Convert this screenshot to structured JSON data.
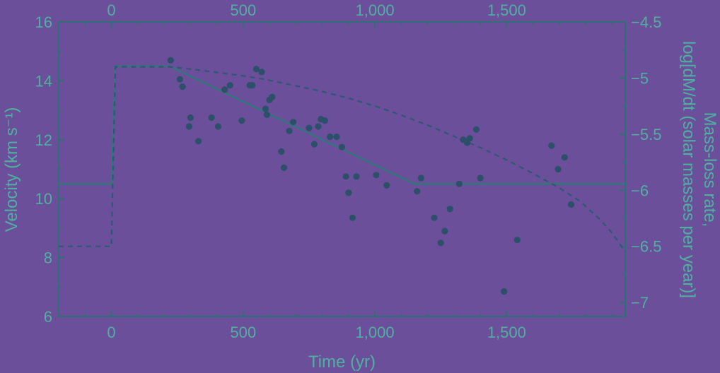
{
  "chart_data": {
    "type": "scatter",
    "xlabel": "Time (yr)",
    "ylabel_left": "Velocity (km s⁻¹)",
    "ylabel_right_line1": "Mass-loss rate,",
    "ylabel_right_line2": "log[dM/dt (solar masses per year)]",
    "xlim": [
      -200,
      1950
    ],
    "ylim_left": [
      6,
      16
    ],
    "ylim_right": [
      -7.125,
      -4.5
    ],
    "bottom_ticks": [
      {
        "v": 0,
        "label": "0"
      },
      {
        "v": 500,
        "label": "500"
      },
      {
        "v": 1000,
        "label": "1,000"
      },
      {
        "v": 1500,
        "label": "1,500"
      }
    ],
    "top_ticks": [
      {
        "v": 0,
        "label": "0"
      },
      {
        "v": 500,
        "label": "500"
      },
      {
        "v": 1000,
        "label": "1,000"
      },
      {
        "v": 1500,
        "label": "1,500"
      }
    ],
    "left_ticks": [
      {
        "v": 6,
        "label": "6"
      },
      {
        "v": 8,
        "label": "8"
      },
      {
        "v": 10,
        "label": "10"
      },
      {
        "v": 12,
        "label": "12"
      },
      {
        "v": 14,
        "label": "14"
      },
      {
        "v": 16,
        "label": "16"
      }
    ],
    "right_ticks": [
      {
        "v": -4.5,
        "label": "−4.5"
      },
      {
        "v": -5,
        "label": "−5"
      },
      {
        "v": -5.5,
        "label": "−5.5"
      },
      {
        "v": -6,
        "label": "−6"
      },
      {
        "v": -6.5,
        "label": "−6.5"
      },
      {
        "v": -7,
        "label": "−7"
      }
    ],
    "points": [
      [
        225,
        14.7
      ],
      [
        260,
        14.05
      ],
      [
        270,
        13.8
      ],
      [
        295,
        12.45
      ],
      [
        300,
        12.75
      ],
      [
        330,
        11.95
      ],
      [
        380,
        12.75
      ],
      [
        405,
        12.45
      ],
      [
        430,
        13.7
      ],
      [
        450,
        13.85
      ],
      [
        495,
        12.65
      ],
      [
        525,
        13.85
      ],
      [
        535,
        13.85
      ],
      [
        550,
        14.4
      ],
      [
        570,
        14.3
      ],
      [
        585,
        13.05
      ],
      [
        590,
        12.85
      ],
      [
        600,
        13.35
      ],
      [
        610,
        13.45
      ],
      [
        645,
        11.6
      ],
      [
        655,
        11.05
      ],
      [
        675,
        12.3
      ],
      [
        690,
        12.6
      ],
      [
        750,
        12.4
      ],
      [
        770,
        11.85
      ],
      [
        785,
        12.45
      ],
      [
        795,
        12.7
      ],
      [
        810,
        12.65
      ],
      [
        830,
        12.1
      ],
      [
        855,
        12.1
      ],
      [
        875,
        11.75
      ],
      [
        890,
        10.75
      ],
      [
        900,
        10.2
      ],
      [
        915,
        9.35
      ],
      [
        930,
        10.75
      ],
      [
        1005,
        10.8
      ],
      [
        1045,
        10.45
      ],
      [
        1160,
        10.25
      ],
      [
        1175,
        10.7
      ],
      [
        1225,
        9.35
      ],
      [
        1250,
        8.5
      ],
      [
        1265,
        8.9
      ],
      [
        1285,
        9.65
      ],
      [
        1320,
        10.5
      ],
      [
        1335,
        12.0
      ],
      [
        1350,
        11.9
      ],
      [
        1360,
        12.05
      ],
      [
        1385,
        12.35
      ],
      [
        1400,
        10.7
      ],
      [
        1490,
        6.85
      ],
      [
        1540,
        8.6
      ],
      [
        1670,
        11.8
      ],
      [
        1695,
        11.0
      ],
      [
        1720,
        11.4
      ],
      [
        1745,
        9.8
      ]
    ],
    "series": [
      {
        "style": "solid",
        "axis": "left",
        "points": [
          [
            -200,
            10.5
          ],
          [
            0,
            10.5
          ],
          [
            15,
            14.5
          ],
          [
            220,
            14.5
          ],
          [
            1150,
            10.5
          ],
          [
            1950,
            10.5
          ]
        ]
      },
      {
        "style": "dashed",
        "axis": "right",
        "points": [
          [
            -200,
            -6.5
          ],
          [
            0,
            -6.5
          ],
          [
            15,
            -4.9
          ],
          [
            220,
            -4.9
          ],
          [
            300,
            -4.92
          ],
          [
            400,
            -4.95
          ],
          [
            500,
            -4.98
          ],
          [
            600,
            -5.02
          ],
          [
            700,
            -5.07
          ],
          [
            800,
            -5.12
          ],
          [
            900,
            -5.18
          ],
          [
            1000,
            -5.25
          ],
          [
            1100,
            -5.33
          ],
          [
            1200,
            -5.42
          ],
          [
            1300,
            -5.52
          ],
          [
            1400,
            -5.62
          ],
          [
            1500,
            -5.73
          ],
          [
            1600,
            -5.85
          ],
          [
            1700,
            -5.98
          ],
          [
            1780,
            -6.1
          ],
          [
            1850,
            -6.25
          ],
          [
            1900,
            -6.38
          ],
          [
            1950,
            -6.55
          ]
        ]
      }
    ]
  }
}
